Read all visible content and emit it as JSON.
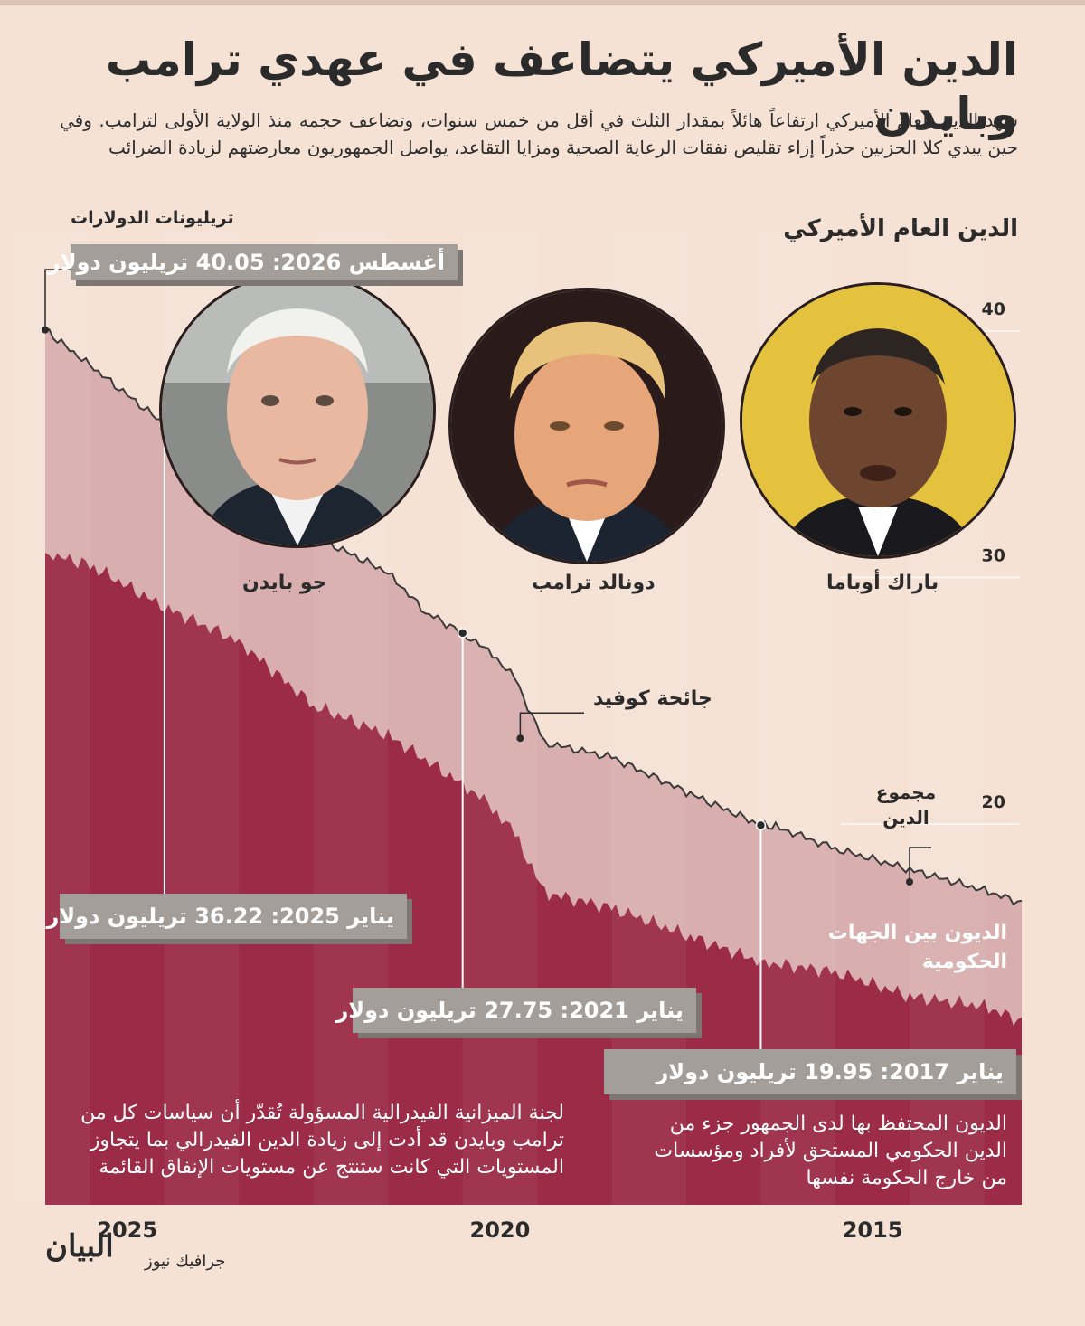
{
  "title": "الدين الأميركي يتضاعف في عهدي ترامب وبايدن",
  "intro": "شهد الدين العام الأميركي ارتفاعاً هائلاً بمقدار الثلث في أقل من خمس سنوات، وتضاعف حجمه منذ الولاية الأولى لترامب. وفي حين يبدي كلا الحزبين حذراً إزاء تقليص نفقات الرعاية الصحية ومزايا التقاعد، يواصل الجمهوريون معارضتهم لزيادة الضرائب",
  "y_axis_title": "الدين العام الأميركي",
  "unit_label": "تريليونات الدولارات",
  "callouts": {
    "aug2026": "أغسطس 2026: 40.05 تريليون دولار",
    "jan2025": "يناير 2025: 36.22 تريليون دولار",
    "jan2021": "يناير 2021: 27.75 تريليون دولار",
    "jan2017": "يناير 2017: 19.95 تريليون دولار"
  },
  "portraits": {
    "biden": "جو بايدن",
    "trump": "دونالد ترامب",
    "obama": "باراك أوباما"
  },
  "labels": {
    "covid": "جائحة كوفيد",
    "total_line1": "مجموع",
    "total_line2": "الدين",
    "intragov_line1": "الديون بين الجهات",
    "intragov_line2": "الحكومية"
  },
  "public_desc": "الديون المحتفظ بها لدى الجمهور جزء من الدين الحكومي المستحق لأفراد ومؤسسات من خارج الحكومة نفسها",
  "cbo_desc": "لجنة الميزانية الفيدرالية المسؤولة تُقدّر أن سياسات كل من ترامب وبايدن قد أدت إلى زيادة الدين الفيدرالي بما يتجاوز المستويات التي كانت ستنتج عن مستويات الإنفاق القائمة",
  "footer": {
    "section": "جرافيك نيوز",
    "brand": "البيان"
  },
  "colors": {
    "background": "#f6e2d5",
    "total_area": "#d9aeae",
    "public_area": "#9b2b47",
    "callout": "#a39e9a"
  },
  "chart_data": {
    "type": "area",
    "x_direction": "right-to-left",
    "xlim": [
      2013.5,
      2026.6
    ],
    "ylim": [
      0,
      40
    ],
    "yticks": [
      "20",
      "30",
      "40"
    ],
    "xticks": [
      "2015",
      "2020",
      "2025"
    ],
    "grid": true,
    "series": [
      {
        "name": "مجموع الدين",
        "x": [
          2013.5,
          2014.0,
          2015.0,
          2016.0,
          2016.8,
          2017.0,
          2018.0,
          2019.0,
          2019.9,
          2020.3,
          2020.6,
          2021.0,
          2021.5,
          2022.0,
          2023.0,
          2024.0,
          2025.0,
          2026.0,
          2026.6
        ],
        "values": [
          16.8,
          17.3,
          18.15,
          19.0,
          19.9,
          19.95,
          21.3,
          22.7,
          23.3,
          25.9,
          26.9,
          27.75,
          28.6,
          30.2,
          31.7,
          34.4,
          36.22,
          38.6,
          40.05
        ]
      },
      {
        "name": "الديون المحتفظ بها لدى الجمهور",
        "x": [
          2013.5,
          2014.0,
          2015.0,
          2016.0,
          2017.0,
          2018.0,
          2019.0,
          2019.9,
          2020.3,
          2020.6,
          2021.0,
          2022.0,
          2023.0,
          2024.0,
          2025.0,
          2026.0,
          2026.6
        ],
        "values": [
          12.0,
          12.6,
          13.0,
          14.0,
          14.4,
          15.5,
          16.6,
          17.2,
          19.6,
          20.7,
          21.6,
          23.6,
          24.8,
          27.4,
          28.8,
          30.5,
          31.0
        ]
      }
    ],
    "annotations": [
      {
        "x": 2026.6,
        "y": 40.05,
        "text": "أغسطس 2026: 40.05 تريليون دولار"
      },
      {
        "x": 2025.0,
        "y": 36.22,
        "text": "يناير 2025: 36.22 تريليون دولار"
      },
      {
        "x": 2021.0,
        "y": 27.75,
        "text": "يناير 2021: 27.75 تريليون دولار"
      },
      {
        "x": 2017.0,
        "y": 19.95,
        "text": "يناير 2017: 19.95 تريليون دولار"
      },
      {
        "x": 2020.3,
        "y": 25.9,
        "text": "جائحة كوفيد"
      }
    ]
  }
}
